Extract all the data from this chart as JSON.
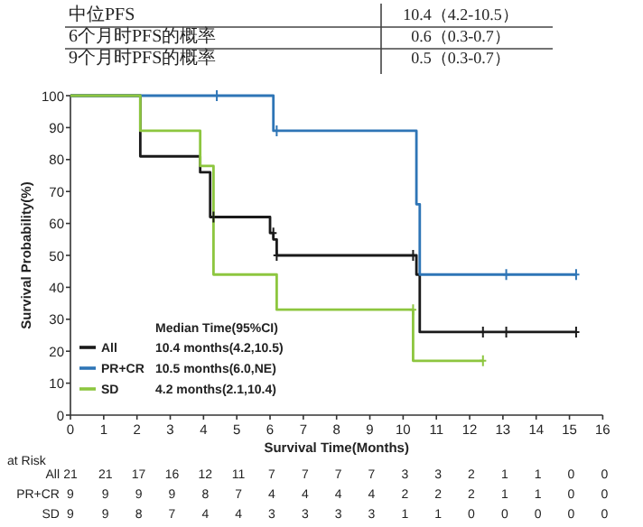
{
  "chart_data": {
    "type": "step",
    "xlabel": "Survival Time(Months)",
    "ylabel": "Survival Probability(%)",
    "xlim": [
      0,
      16
    ],
    "xticks": [
      0,
      1,
      2,
      3,
      4,
      5,
      6,
      7,
      8,
      9,
      10,
      11,
      12,
      13,
      14,
      15,
      16
    ],
    "ylim": [
      0,
      100
    ],
    "yticks": [
      0,
      10,
      20,
      30,
      40,
      50,
      60,
      70,
      80,
      90,
      100
    ],
    "legend": "bottom left",
    "legend_title": "Median Time(95%CI)",
    "series": [
      {
        "name": "All",
        "color": "#1a1a1a",
        "x": [
          0,
          2.1,
          3.9,
          4.2,
          6.0,
          6.1,
          6.2,
          10.4,
          10.5,
          15.2
        ],
        "values": [
          100,
          81,
          76,
          62,
          57,
          55,
          50,
          44,
          26,
          26
        ]
      },
      {
        "name": "PR+CR",
        "color": "#2e75b6",
        "x": [
          0,
          6.1,
          10.4,
          10.5,
          15.2
        ],
        "values": [
          100,
          89,
          66,
          44,
          44
        ]
      },
      {
        "name": "SD",
        "color": "#8dc63f",
        "x": [
          0,
          2.1,
          3.9,
          4.3,
          6.2,
          10.3,
          12.4
        ],
        "values": [
          100,
          89,
          78,
          44,
          33,
          17,
          17
        ]
      },
      {
        "type": "scatter",
        "marker": "cross",
        "color": "#1a1a1a",
        "x": [
          4.3,
          6.1,
          6.2,
          10.3,
          12.4,
          13.1,
          15.2
        ],
        "values": [
          62,
          57,
          50,
          50,
          26,
          26,
          26
        ]
      },
      {
        "type": "scatter",
        "marker": "cross",
        "color": "#2e75b6",
        "x": [
          4.4,
          6.2,
          13.1,
          15.2
        ],
        "values": [
          100,
          89,
          44,
          44
        ]
      },
      {
        "type": "scatter",
        "marker": "cross",
        "color": "#8dc63f",
        "x": [
          10.3,
          12.4
        ],
        "values": [
          33,
          17
        ]
      }
    ],
    "annotations": [
      "中位PFS",
      "10.4（4.2-10.5）",
      "6个月时PFS的概率",
      "0.6（0.3-0.7）",
      "9个月时PFS的概率",
      "0.5（0.3-0.7）",
      "10.4 months(4.2,10.5)",
      "10.5 months(6.0,NE)",
      "4.2 months(2.1,10.4)",
      "at Risk",
      "21 21 17 16 12 11 7 7 7 7 3 3 2 1 1 0 0",
      "9 9 9 9 8 7 4 4 4 4 2 2 2 1 1 0 0",
      "9 9 8 7 4 4 3 3 3 3 1 1 0 0 0 0 0"
    ]
  }
}
